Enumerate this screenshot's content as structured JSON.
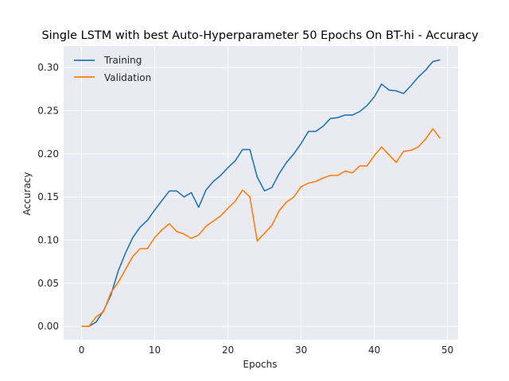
{
  "chart_data": {
    "type": "line",
    "title": "Single LSTM with best Auto-Hyperparameter 50 Epochs On BT-hi - Accuracy",
    "xlabel": "Epochs",
    "ylabel": "Accuracy",
    "xlim": [
      -2.45,
      51.45
    ],
    "ylim": [
      -0.0155,
      0.325
    ],
    "xticks": [
      0,
      10,
      20,
      30,
      40,
      50
    ],
    "xtick_labels": [
      "0",
      "10",
      "20",
      "30",
      "40",
      "50"
    ],
    "yticks": [
      0.0,
      0.05,
      0.1,
      0.15,
      0.2,
      0.25,
      0.3
    ],
    "ytick_labels": [
      "0.00",
      "0.05",
      "0.10",
      "0.15",
      "0.20",
      "0.25",
      "0.30"
    ],
    "grid": true,
    "legend_position": "upper-left",
    "x": [
      0,
      1,
      2,
      3,
      4,
      5,
      6,
      7,
      8,
      9,
      10,
      11,
      12,
      13,
      14,
      15,
      16,
      17,
      18,
      19,
      20,
      21,
      22,
      23,
      24,
      25,
      26,
      27,
      28,
      29,
      30,
      31,
      32,
      33,
      34,
      35,
      36,
      37,
      38,
      39,
      40,
      41,
      42,
      43,
      44,
      45,
      46,
      47,
      48,
      49
    ],
    "series": [
      {
        "name": "Training",
        "color": "#1f77b4",
        "values": [
          0.0,
          0.0,
          0.005,
          0.018,
          0.036,
          0.064,
          0.085,
          0.103,
          0.115,
          0.123,
          0.135,
          0.146,
          0.157,
          0.157,
          0.15,
          0.155,
          0.138,
          0.158,
          0.168,
          0.175,
          0.184,
          0.192,
          0.205,
          0.205,
          0.173,
          0.157,
          0.161,
          0.177,
          0.19,
          0.2,
          0.212,
          0.226,
          0.226,
          0.232,
          0.241,
          0.242,
          0.245,
          0.245,
          0.249,
          0.256,
          0.266,
          0.281,
          0.274,
          0.273,
          0.27,
          0.279,
          0.289,
          0.297,
          0.307,
          0.309
        ]
      },
      {
        "name": "Validation",
        "color": "#ff7f0e",
        "values": [
          0.0,
          0.0,
          0.011,
          0.017,
          0.039,
          0.051,
          0.066,
          0.081,
          0.09,
          0.09,
          0.103,
          0.112,
          0.119,
          0.11,
          0.107,
          0.102,
          0.106,
          0.116,
          0.122,
          0.128,
          0.137,
          0.145,
          0.158,
          0.15,
          0.099,
          0.108,
          0.117,
          0.134,
          0.144,
          0.15,
          0.162,
          0.166,
          0.168,
          0.172,
          0.175,
          0.175,
          0.18,
          0.178,
          0.186,
          0.186,
          0.198,
          0.208,
          0.199,
          0.19,
          0.203,
          0.204,
          0.208,
          0.217,
          0.229,
          0.218
        ]
      }
    ]
  }
}
